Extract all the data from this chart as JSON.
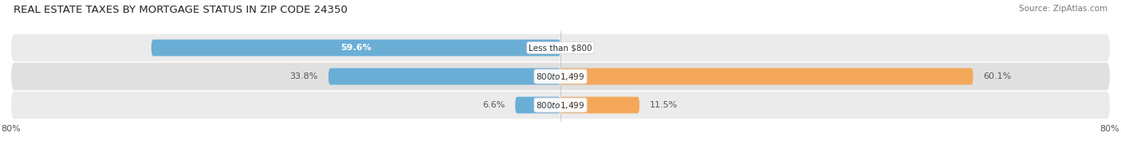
{
  "title": "REAL ESTATE TAXES BY MORTGAGE STATUS IN ZIP CODE 24350",
  "source": "Source: ZipAtlas.com",
  "categories": [
    "Less than $800",
    "$800 to $1,499",
    "$800 to $1,499"
  ],
  "without_mortgage": [
    59.6,
    33.8,
    6.6
  ],
  "with_mortgage": [
    0.0,
    60.1,
    11.5
  ],
  "color_without": "#6aaed6",
  "color_with": "#f5a85a",
  "xlim": [
    -80.0,
    80.0
  ],
  "background_fig": "#ffffff",
  "title_fontsize": 9.5,
  "source_fontsize": 7.5,
  "bar_label_fontsize": 8,
  "category_fontsize": 7.5,
  "legend_fontsize": 8.5,
  "bar_height": 0.58,
  "row_bg_colors": [
    "#ebebeb",
    "#e0e0e0",
    "#ebebeb"
  ],
  "label_inside_color": "#ffffff",
  "label_outside_color": "#555555",
  "category_label_color": "#333333",
  "without_label_inside": [
    true,
    false,
    false
  ],
  "with_label_outside": [
    true,
    true,
    true
  ]
}
